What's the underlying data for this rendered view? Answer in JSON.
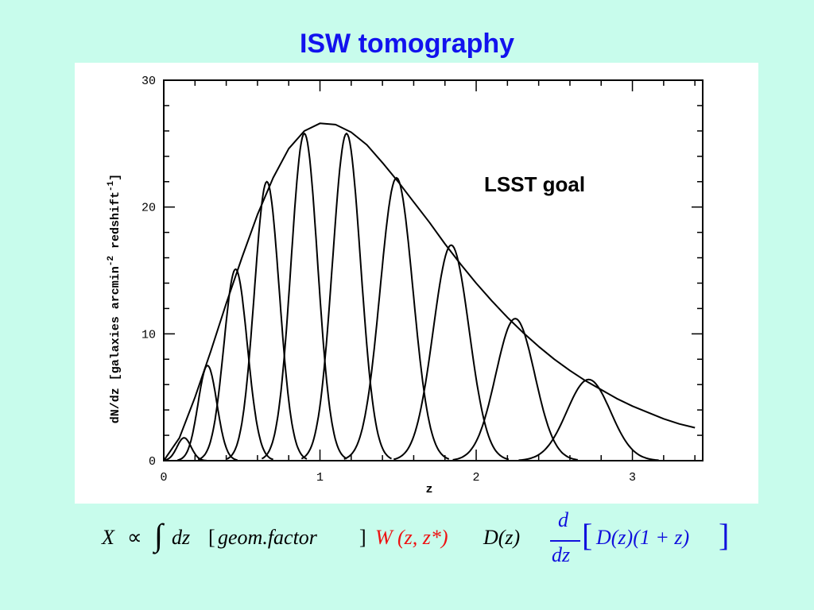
{
  "title": "ISW tomography",
  "chart_data": {
    "type": "line",
    "xlabel": "z",
    "ylabel": "dN/dz  [galaxies arcmin",
    "ylabel_exp1": "-2",
    "ylabel_mid": " redshift",
    "ylabel_exp2": "-1",
    "ylabel_end": "]",
    "xlim": [
      0,
      3.45
    ],
    "ylim": [
      0,
      30
    ],
    "x_ticks": [
      0,
      1,
      2,
      3
    ],
    "x_tick_labels": [
      "0",
      "1",
      "2",
      "3"
    ],
    "y_ticks": [
      0,
      10,
      20,
      30
    ],
    "y_tick_labels": [
      "0",
      "10",
      "20",
      "30"
    ],
    "grid": false,
    "annotation": "LSST goal",
    "envelope": {
      "x": [
        0,
        0.1,
        0.2,
        0.3,
        0.4,
        0.5,
        0.6,
        0.7,
        0.8,
        0.9,
        1.0,
        1.1,
        1.2,
        1.3,
        1.4,
        1.5,
        1.6,
        1.7,
        1.8,
        1.9,
        2.0,
        2.1,
        2.2,
        2.3,
        2.4,
        2.5,
        2.6,
        2.7,
        2.8,
        2.9,
        3.0,
        3.1,
        3.2,
        3.3,
        3.4
      ],
      "y": [
        0,
        1.8,
        5.0,
        8.6,
        12.4,
        16.0,
        19.4,
        22.3,
        24.6,
        26.0,
        26.6,
        26.5,
        25.9,
        24.9,
        23.5,
        22.0,
        20.4,
        18.8,
        17.1,
        15.5,
        14.0,
        12.6,
        11.3,
        10.1,
        9.0,
        8.0,
        7.1,
        6.3,
        5.6,
        4.9,
        4.3,
        3.8,
        3.3,
        2.9,
        2.6
      ]
    },
    "series": [
      {
        "center": 0.13,
        "peak": 1.8,
        "width": 0.045
      },
      {
        "center": 0.28,
        "peak": 7.5,
        "width": 0.06
      },
      {
        "center": 0.46,
        "peak": 15.1,
        "width": 0.075
      },
      {
        "center": 0.66,
        "peak": 22.0,
        "width": 0.08
      },
      {
        "center": 0.9,
        "peak": 25.8,
        "width": 0.085
      },
      {
        "center": 1.17,
        "peak": 25.8,
        "width": 0.09
      },
      {
        "center": 1.49,
        "peak": 22.3,
        "width": 0.105
      },
      {
        "center": 1.84,
        "peak": 17.0,
        "width": 0.115
      },
      {
        "center": 2.25,
        "peak": 11.2,
        "width": 0.125
      },
      {
        "center": 2.72,
        "peak": 6.4,
        "width": 0.14
      }
    ]
  },
  "formula": {
    "x": "X",
    "prop": "∝",
    "integral": "∫",
    "dz": "dz",
    "lbracket": "[",
    "geom": "geom.factor",
    "rbracket": "]",
    "w": "W",
    "w_args": "(z, z*)",
    "d": "D(z)",
    "frac_num": "d",
    "frac_den": "dz",
    "big_lbracket": "[",
    "growth": "D(z)(1 + z)",
    "big_rbracket": "]"
  }
}
